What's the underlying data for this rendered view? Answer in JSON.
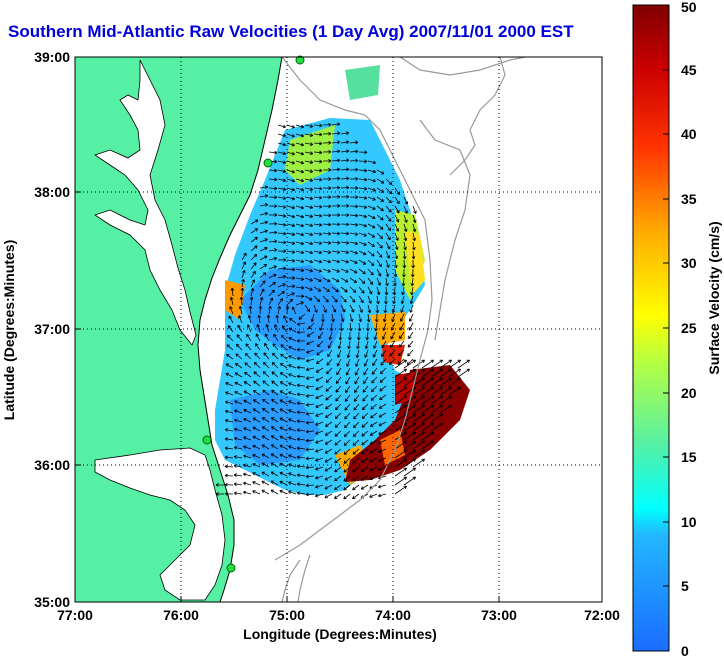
{
  "title": "Southern Mid-Atlantic Raw Velocities (1 Day Avg) 2007/11/01 2000 EST",
  "map": {
    "xlabel": "Longitude (Degrees:Minutes)",
    "ylabel": "Latitude (Degrees:Minutes)",
    "lon_ticks": [
      "77:00",
      "76:00",
      "75:00",
      "74:00",
      "73:00",
      "72:00"
    ],
    "lat_ticks": [
      "39:00",
      "38:00",
      "37:00",
      "36:00",
      "35:00"
    ],
    "lon_range": [
      -77,
      -72
    ],
    "lat_range": [
      35,
      39
    ],
    "grid": "dotted",
    "land_color": "#55f0a4",
    "bathymetry_color": "#999999"
  },
  "colorbar": {
    "label": "Surface Velocity (cm/s)",
    "ticks": [
      "0",
      "5",
      "10",
      "15",
      "20",
      "25",
      "30",
      "35",
      "40",
      "45",
      "50"
    ],
    "range": [
      0,
      50
    ],
    "colormap": "jet"
  }
}
